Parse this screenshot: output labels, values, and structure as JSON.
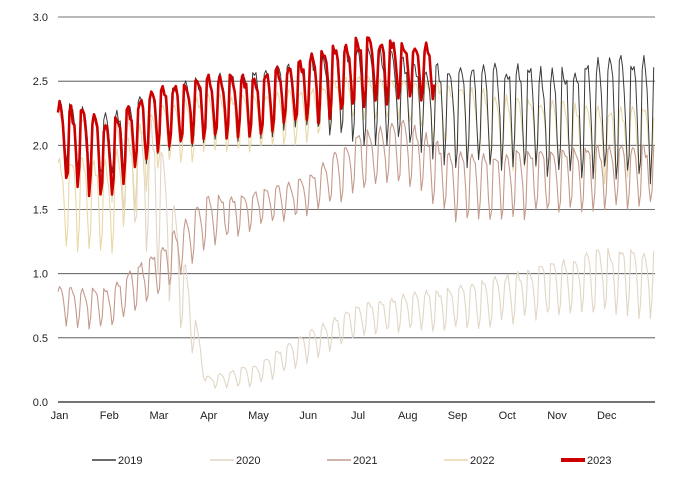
{
  "chart_data": {
    "type": "line",
    "ylim": [
      0,
      3.0
    ],
    "y_ticks": [
      "0.0",
      "0.5",
      "1.0",
      "1.5",
      "2.0",
      "2.5",
      "3.0"
    ],
    "x_ticks": [
      "Jan",
      "Feb",
      "Mar",
      "Apr",
      "May",
      "Jun",
      "Jul",
      "Aug",
      "Sep",
      "Oct",
      "Nov",
      "Dec"
    ],
    "grid": "horizontal",
    "legend_position": "bottom",
    "weekly_cycle": true,
    "series": [
      {
        "name": "2019",
        "color": "#3a3a3a",
        "month_ranges": [
          [
            1.85,
            2.35
          ],
          [
            1.7,
            2.25
          ],
          [
            1.9,
            2.45
          ],
          [
            2.0,
            2.55
          ],
          [
            2.05,
            2.6
          ],
          [
            2.1,
            2.7
          ],
          [
            2.0,
            2.8
          ],
          [
            2.0,
            2.7
          ],
          [
            1.8,
            2.6
          ],
          [
            1.8,
            2.65
          ],
          [
            1.75,
            2.6
          ],
          [
            1.7,
            2.7
          ]
        ]
      },
      {
        "name": "2020",
        "color": "#e2d6c6",
        "month_ranges": [
          [
            1.75,
            2.3
          ],
          [
            1.6,
            2.2
          ],
          [
            1.0,
            2.2
          ],
          [
            0.1,
            0.2
          ],
          [
            0.12,
            0.3
          ],
          [
            0.3,
            0.55
          ],
          [
            0.5,
            0.75
          ],
          [
            0.55,
            0.85
          ],
          [
            0.55,
            0.9
          ],
          [
            0.6,
            1.0
          ],
          [
            0.65,
            1.1
          ],
          [
            0.65,
            1.2
          ]
        ]
      },
      {
        "name": "2021",
        "color": "#c49a8c",
        "month_ranges": [
          [
            0.6,
            0.9
          ],
          [
            0.55,
            0.9
          ],
          [
            0.8,
            1.2
          ],
          [
            1.2,
            1.6
          ],
          [
            1.35,
            1.65
          ],
          [
            1.45,
            1.75
          ],
          [
            1.6,
            2.1
          ],
          [
            1.7,
            2.2
          ],
          [
            1.4,
            1.95
          ],
          [
            1.4,
            1.95
          ],
          [
            1.45,
            2.0
          ],
          [
            1.5,
            2.0
          ]
        ]
      },
      {
        "name": "2022",
        "color": "#e8d9a8",
        "month_ranges": [
          [
            1.2,
            1.9
          ],
          [
            1.1,
            1.9
          ],
          [
            1.8,
            2.3
          ],
          [
            1.9,
            2.4
          ],
          [
            1.95,
            2.4
          ],
          [
            2.0,
            2.45
          ],
          [
            2.2,
            2.55
          ],
          [
            2.2,
            2.5
          ],
          [
            1.9,
            2.5
          ],
          [
            1.8,
            2.4
          ],
          [
            1.8,
            2.35
          ],
          [
            1.7,
            2.3
          ]
        ]
      },
      {
        "name": "2023",
        "color": "#cc0000",
        "end_month": 7.6,
        "month_ranges": [
          [
            1.7,
            2.35
          ],
          [
            1.55,
            2.2
          ],
          [
            1.95,
            2.45
          ],
          [
            2.05,
            2.55
          ],
          [
            2.05,
            2.55
          ],
          [
            2.15,
            2.7
          ],
          [
            2.25,
            2.85
          ],
          [
            2.35,
            2.8
          ]
        ]
      }
    ]
  }
}
